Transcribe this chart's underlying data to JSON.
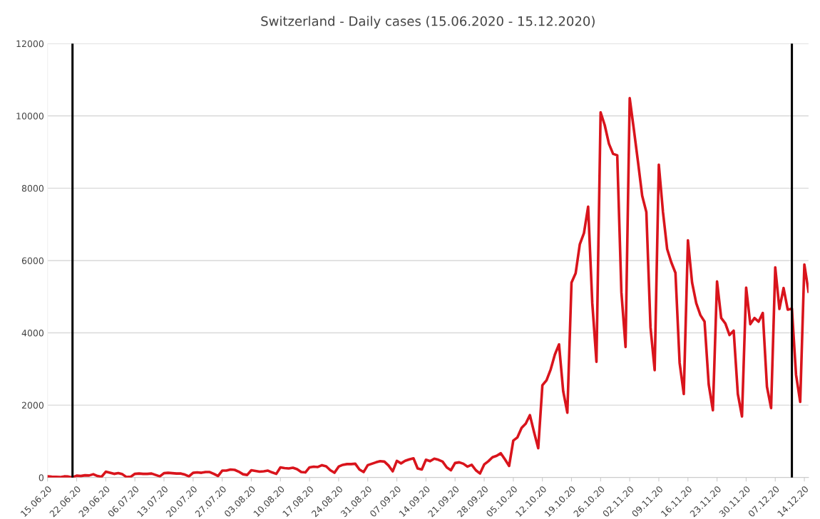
{
  "chart_data": {
    "type": "line",
    "title": "Switzerland - Daily cases (15.06.2020 - 15.12.2020)",
    "x": [
      "2020-06-15",
      "2020-06-16",
      "2020-06-17",
      "2020-06-18",
      "2020-06-19",
      "2020-06-20",
      "2020-06-21",
      "2020-06-22",
      "2020-06-23",
      "2020-06-24",
      "2020-06-25",
      "2020-06-26",
      "2020-06-27",
      "2020-06-28",
      "2020-06-29",
      "2020-06-30",
      "2020-07-01",
      "2020-07-02",
      "2020-07-03",
      "2020-07-04",
      "2020-07-05",
      "2020-07-06",
      "2020-07-07",
      "2020-07-08",
      "2020-07-09",
      "2020-07-10",
      "2020-07-11",
      "2020-07-12",
      "2020-07-13",
      "2020-07-14",
      "2020-07-15",
      "2020-07-16",
      "2020-07-17",
      "2020-07-18",
      "2020-07-19",
      "2020-07-20",
      "2020-07-21",
      "2020-07-22",
      "2020-07-23",
      "2020-07-24",
      "2020-07-25",
      "2020-07-26",
      "2020-07-27",
      "2020-07-28",
      "2020-07-29",
      "2020-07-30",
      "2020-07-31",
      "2020-08-01",
      "2020-08-02",
      "2020-08-03",
      "2020-08-04",
      "2020-08-05",
      "2020-08-06",
      "2020-08-07",
      "2020-08-08",
      "2020-08-09",
      "2020-08-10",
      "2020-08-11",
      "2020-08-12",
      "2020-08-13",
      "2020-08-14",
      "2020-08-15",
      "2020-08-16",
      "2020-08-17",
      "2020-08-18",
      "2020-08-19",
      "2020-08-20",
      "2020-08-21",
      "2020-08-22",
      "2020-08-23",
      "2020-08-24",
      "2020-08-25",
      "2020-08-26",
      "2020-08-27",
      "2020-08-28",
      "2020-08-29",
      "2020-08-30",
      "2020-08-31",
      "2020-09-01",
      "2020-09-02",
      "2020-09-03",
      "2020-09-04",
      "2020-09-05",
      "2020-09-06",
      "2020-09-07",
      "2020-09-08",
      "2020-09-09",
      "2020-09-10",
      "2020-09-11",
      "2020-09-12",
      "2020-09-13",
      "2020-09-14",
      "2020-09-15",
      "2020-09-16",
      "2020-09-17",
      "2020-09-18",
      "2020-09-19",
      "2020-09-20",
      "2020-09-21",
      "2020-09-22",
      "2020-09-23",
      "2020-09-24",
      "2020-09-25",
      "2020-09-26",
      "2020-09-27",
      "2020-09-28",
      "2020-09-29",
      "2020-09-30",
      "2020-10-01",
      "2020-10-02",
      "2020-10-03",
      "2020-10-04",
      "2020-10-05",
      "2020-10-06",
      "2020-10-07",
      "2020-10-08",
      "2020-10-09",
      "2020-10-10",
      "2020-10-11",
      "2020-10-12",
      "2020-10-13",
      "2020-10-14",
      "2020-10-15",
      "2020-10-16",
      "2020-10-17",
      "2020-10-18",
      "2020-10-19",
      "2020-10-20",
      "2020-10-21",
      "2020-10-22",
      "2020-10-23",
      "2020-10-24",
      "2020-10-25",
      "2020-10-26",
      "2020-10-27",
      "2020-10-28",
      "2020-10-29",
      "2020-10-30",
      "2020-10-31",
      "2020-11-01",
      "2020-11-02",
      "2020-11-03",
      "2020-11-04",
      "2020-11-05",
      "2020-11-06",
      "2020-11-07",
      "2020-11-08",
      "2020-11-09",
      "2020-11-10",
      "2020-11-11",
      "2020-11-12",
      "2020-11-13",
      "2020-11-14",
      "2020-11-15",
      "2020-11-16",
      "2020-11-17",
      "2020-11-18",
      "2020-11-19",
      "2020-11-20",
      "2020-11-21",
      "2020-11-22",
      "2020-11-23",
      "2020-11-24",
      "2020-11-25",
      "2020-11-26",
      "2020-11-27",
      "2020-11-28",
      "2020-11-29",
      "2020-11-30",
      "2020-12-01",
      "2020-12-02",
      "2020-12-03",
      "2020-12-04",
      "2020-12-05",
      "2020-12-06",
      "2020-12-07",
      "2020-12-08",
      "2020-12-09",
      "2020-12-10",
      "2020-12-11",
      "2020-12-12",
      "2020-12-13",
      "2020-12-14",
      "2020-12-15"
    ],
    "series": [
      {
        "color": "#d9141c",
        "values": [
          30,
          20,
          15,
          10,
          30,
          25,
          5,
          50,
          40,
          60,
          55,
          90,
          40,
          20,
          160,
          130,
          100,
          120,
          90,
          10,
          20,
          100,
          110,
          100,
          100,
          110,
          70,
          30,
          120,
          130,
          120,
          110,
          110,
          80,
          30,
          130,
          140,
          130,
          150,
          150,
          100,
          40,
          190,
          190,
          220,
          210,
          160,
          90,
          70,
          200,
          180,
          160,
          170,
          190,
          140,
          100,
          280,
          260,
          250,
          270,
          230,
          150,
          140,
          280,
          300,
          290,
          340,
          310,
          200,
          130,
          300,
          350,
          370,
          370,
          380,
          220,
          150,
          340,
          380,
          420,
          450,
          440,
          330,
          170,
          460,
          390,
          460,
          500,
          530,
          250,
          220,
          490,
          450,
          520,
          490,
          440,
          280,
          200,
          400,
          420,
          380,
          300,
          350,
          200,
          110,
          360,
          450,
          560,
          600,
          670,
          500,
          320,
          1020,
          1110,
          1370,
          1490,
          1725,
          1250,
          810,
          2550,
          2690,
          2990,
          3400,
          3680,
          2390,
          1790,
          5390,
          5650,
          6450,
          6760,
          7490,
          4820,
          3200,
          10100,
          9740,
          9230,
          8950,
          8910,
          5120,
          3610,
          10490,
          9620,
          8720,
          7790,
          7340,
          4150,
          2970,
          8650,
          7340,
          6320,
          5950,
          5660,
          3170,
          2310,
          6560,
          5390,
          4820,
          4490,
          4310,
          2570,
          1860,
          5420,
          4410,
          4260,
          3940,
          4060,
          2310,
          1690,
          5250,
          4240,
          4410,
          4310,
          4550,
          2510,
          1920,
          5810,
          4660,
          5240,
          4640,
          4670,
          2840,
          2090,
          5890,
          5140
        ]
      }
    ],
    "xlim": [
      "2020-06-15",
      "2020-12-15"
    ],
    "xticks": [
      {
        "value": "2020-06-15",
        "label": "15.06.20"
      },
      {
        "value": "2020-06-22",
        "label": "22.06.20"
      },
      {
        "value": "2020-06-29",
        "label": "29.06.20"
      },
      {
        "value": "2020-07-06",
        "label": "06.07.20"
      },
      {
        "value": "2020-07-13",
        "label": "13.07.20"
      },
      {
        "value": "2020-07-20",
        "label": "20.07.20"
      },
      {
        "value": "2020-07-27",
        "label": "27.07.20"
      },
      {
        "value": "2020-08-03",
        "label": "03.08.20"
      },
      {
        "value": "2020-08-10",
        "label": "10.08.20"
      },
      {
        "value": "2020-08-17",
        "label": "17.08.20"
      },
      {
        "value": "2020-08-24",
        "label": "24.08.20"
      },
      {
        "value": "2020-08-31",
        "label": "31.08.20"
      },
      {
        "value": "2020-09-07",
        "label": "07.09.20"
      },
      {
        "value": "2020-09-14",
        "label": "14.09.20"
      },
      {
        "value": "2020-09-21",
        "label": "21.09.20"
      },
      {
        "value": "2020-09-28",
        "label": "28.09.20"
      },
      {
        "value": "2020-10-05",
        "label": "05.10.20"
      },
      {
        "value": "2020-10-12",
        "label": "12.10.20"
      },
      {
        "value": "2020-10-19",
        "label": "19.10.20"
      },
      {
        "value": "2020-10-26",
        "label": "26.10.20"
      },
      {
        "value": "2020-11-02",
        "label": "02.11.20"
      },
      {
        "value": "2020-11-09",
        "label": "09.11.20"
      },
      {
        "value": "2020-11-16",
        "label": "16.11.20"
      },
      {
        "value": "2020-11-23",
        "label": "23.11.20"
      },
      {
        "value": "2020-11-30",
        "label": "30.11.20"
      },
      {
        "value": "2020-12-07",
        "label": "07.12.20"
      },
      {
        "value": "2020-12-14",
        "label": "14.12.20"
      }
    ],
    "ylim": [
      0,
      12000
    ],
    "yticks": [
      0,
      2000,
      4000,
      6000,
      8000,
      10000,
      12000
    ],
    "grid": "y",
    "ref_lines": [
      {
        "axis": "x",
        "value": "2020-06-21",
        "color": "#000000"
      },
      {
        "axis": "x",
        "value": "2020-12-11",
        "color": "#000000"
      }
    ]
  }
}
